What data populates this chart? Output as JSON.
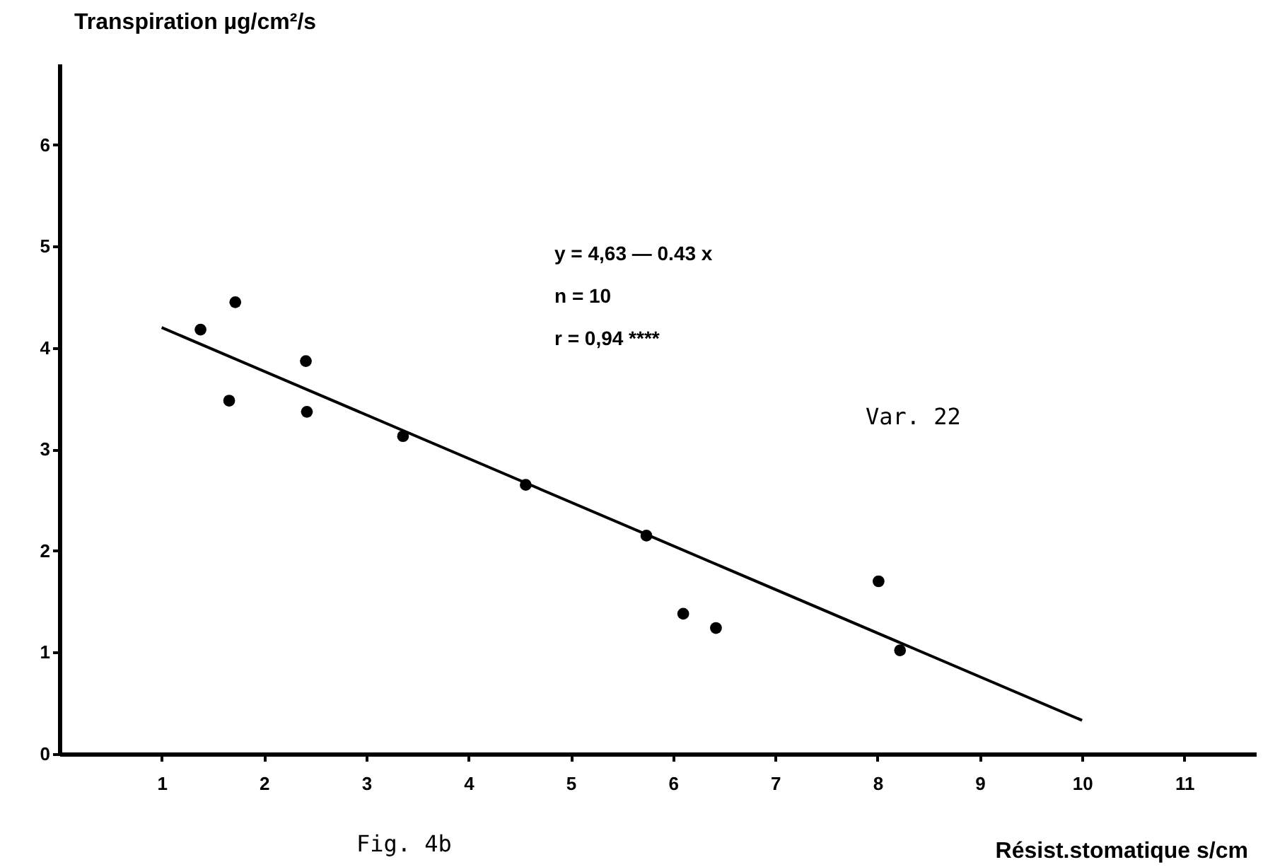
{
  "chart_data": {
    "type": "scatter",
    "xlabel": "Résist.stomatique  s/cm",
    "ylabel": "Transpiration  µg/cm²/s",
    "xlim": [
      0,
      11.7
    ],
    "xticks": [
      1,
      2,
      3,
      4,
      5,
      6,
      7,
      8,
      9,
      10,
      11
    ],
    "ylim": [
      0,
      6.8
    ],
    "yticks": [
      0,
      1,
      2,
      3,
      4,
      5,
      6
    ],
    "marker": "circle",
    "series": [
      {
        "color": "#000000",
        "x": [
          1.38,
          1.72,
          1.66,
          2.41,
          2.42,
          3.36,
          4.56,
          5.74,
          6.1,
          6.42,
          8.01,
          8.22
        ],
        "values": [
          4.18,
          4.45,
          3.48,
          3.87,
          3.37,
          3.13,
          2.65,
          2.15,
          1.38,
          1.24,
          1.7,
          1.02
        ]
      },
      {
        "type": "line",
        "color": "#000000",
        "line_style": "solid",
        "marker": "none",
        "x": [
          1,
          10
        ],
        "values": [
          4.2,
          0.33
        ]
      }
    ],
    "annotations": [
      "y = 4,63 — 0.43 x",
      "n = 10",
      "r = 0,94  ****",
      "Var. 22",
      "Fig. 4b"
    ]
  }
}
